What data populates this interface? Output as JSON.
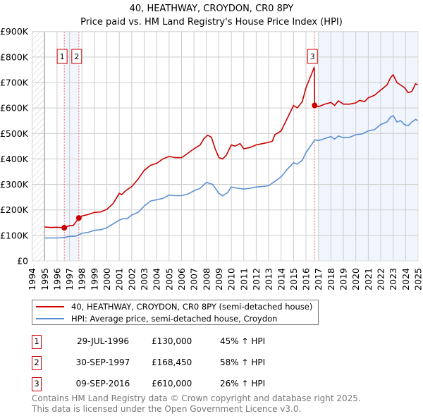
{
  "chart_data": {
    "type": "line",
    "title": "40, HEATHWAY, CROYDON, CR0 8PY",
    "subtitle": "Price paid vs. HM Land Registry's House Price Index (HPI)",
    "xlim": [
      1994,
      2025
    ],
    "ylim": [
      0,
      900000
    ],
    "x_ticks": [
      "1994",
      "1995",
      "1996",
      "1997",
      "1998",
      "1999",
      "2000",
      "2001",
      "2002",
      "2003",
      "2004",
      "2005",
      "2006",
      "2007",
      "2008",
      "2009",
      "2010",
      "2011",
      "2012",
      "2013",
      "2014",
      "2015",
      "2016",
      "2017",
      "2018",
      "2019",
      "2020",
      "2021",
      "2022",
      "2023",
      "2024",
      "2025"
    ],
    "y_ticks": [
      {
        "v": 0,
        "label": "£0"
      },
      {
        "v": 100000,
        "label": "£100K"
      },
      {
        "v": 200000,
        "label": "£200K"
      },
      {
        "v": 300000,
        "label": "£300K"
      },
      {
        "v": 400000,
        "label": "£400K"
      },
      {
        "v": 500000,
        "label": "£500K"
      },
      {
        "v": 600000,
        "label": "£600K"
      },
      {
        "v": 700000,
        "label": "£700K"
      },
      {
        "v": 800000,
        "label": "£800K"
      },
      {
        "v": 900000,
        "label": "£900K"
      }
    ],
    "grid": true,
    "series": [
      {
        "name": "40, HEATHWAY, CROYDON, CR0 8PY (semi-detached house)",
        "color": "#cc0000",
        "x": [
          1995,
          1995.5,
          1996,
          1996.58,
          1997,
          1997.3,
          1997.75,
          1998,
          1998.5,
          1999,
          1999.5,
          2000,
          2000.5,
          2001,
          2001.2,
          2001.5,
          2002,
          2002.5,
          2003,
          2003.5,
          2004,
          2004.5,
          2005,
          2005.5,
          2006,
          2006.3,
          2007,
          2007.5,
          2007.8,
          2008.1,
          2008.4,
          2008.7,
          2009,
          2009.3,
          2009.6,
          2010,
          2010.3,
          2010.7,
          2011,
          2011.5,
          2012,
          2012.5,
          2013,
          2013.3,
          2013.5,
          2014,
          2014.5,
          2015,
          2015.3,
          2015.7,
          2016,
          2016.5,
          2016.66,
          2016.69,
          2017,
          2017.5,
          2018,
          2018.3,
          2018.6,
          2019,
          2019.5,
          2020,
          2020.3,
          2020.7,
          2021,
          2021.5,
          2022,
          2022.5,
          2022.8,
          2023,
          2023.3,
          2023.6,
          2023.9,
          2024.2,
          2024.5,
          2024.8,
          2025
        ],
        "y": [
          133,
          131,
          132,
          130,
          138,
          139,
          168,
          176,
          182,
          190,
          192,
          202,
          225,
          265,
          260,
          275,
          292,
          320,
          355,
          375,
          383,
          400,
          410,
          405,
          405,
          415,
          440,
          455,
          480,
          493,
          485,
          440,
          405,
          400,
          415,
          455,
          450,
          460,
          440,
          445,
          455,
          460,
          465,
          470,
          495,
          510,
          560,
          610,
          600,
          625,
          680,
          740,
          760,
          610,
          605,
          615,
          622,
          610,
          628,
          615,
          615,
          620,
          630,
          625,
          640,
          650,
          670,
          690,
          720,
          730,
          700,
          690,
          680,
          660,
          665,
          695,
          690
        ]
      },
      {
        "name": "HPI: Average price, semi-detached house, Croydon",
        "color": "#5b8fd4",
        "x": [
          1995,
          1996,
          1996.6,
          1997,
          1997.5,
          1998,
          1998.5,
          1999,
          1999.5,
          2000,
          2000.5,
          2001,
          2001.3,
          2001.6,
          2002,
          2002.5,
          2003,
          2003.5,
          2004,
          2004.5,
          2005,
          2005.5,
          2006,
          2006.5,
          2007,
          2007.5,
          2008,
          2008.5,
          2009,
          2009.3,
          2009.7,
          2010,
          2010.5,
          2011,
          2011.5,
          2012,
          2012.5,
          2013,
          2013.5,
          2014,
          2014.5,
          2015,
          2015.3,
          2015.7,
          2016,
          2016.5,
          2016.7,
          2017,
          2017.5,
          2018,
          2018.3,
          2018.6,
          2019,
          2019.5,
          2020,
          2020.5,
          2021,
          2021.5,
          2022,
          2022.5,
          2022.8,
          2023,
          2023.3,
          2023.6,
          2023.9,
          2024.2,
          2024.5,
          2024.8,
          2025
        ],
        "y": [
          90,
          90,
          92,
          96,
          97,
          108,
          112,
          120,
          122,
          130,
          145,
          160,
          166,
          165,
          180,
          190,
          215,
          235,
          240,
          245,
          258,
          256,
          256,
          262,
          275,
          285,
          308,
          300,
          265,
          255,
          268,
          290,
          285,
          282,
          285,
          290,
          292,
          295,
          312,
          330,
          360,
          385,
          380,
          395,
          425,
          460,
          475,
          472,
          480,
          488,
          478,
          490,
          483,
          485,
          495,
          498,
          510,
          515,
          535,
          545,
          565,
          570,
          545,
          550,
          535,
          530,
          545,
          555,
          550
        ]
      }
    ],
    "y_unit": "thousands GBP",
    "sales": [
      {
        "label": "1",
        "x": 1996.58,
        "y": 130
      },
      {
        "label": "2",
        "x": 1997.75,
        "y": 168.45
      },
      {
        "label": "3",
        "x": 2016.69,
        "y": 610
      }
    ],
    "shaded_ranges": [
      [
        1996.58,
        1997.75
      ],
      [
        2017,
        2025
      ]
    ],
    "hatched_range": [
      1994,
      1995
    ]
  },
  "legend": {
    "property": "40, HEATHWAY, CROYDON, CR0 8PY (semi-detached house)",
    "hpi": "HPI: Average price, semi-detached house, Croydon"
  },
  "transactions": [
    {
      "num": "1",
      "date": "29-JUL-1996",
      "price": "£130,000",
      "hpi": "45% ↑ HPI"
    },
    {
      "num": "2",
      "date": "30-SEP-1997",
      "price": "£168,450",
      "hpi": "58% ↑ HPI"
    },
    {
      "num": "3",
      "date": "09-SEP-2016",
      "price": "£610,000",
      "hpi": "26% ↑ HPI"
    }
  ],
  "footer": {
    "line1": "Contains HM Land Registry data © Crown copyright and database right 2025.",
    "line2": "This data is licensed under the Open Government Licence v3.0."
  }
}
